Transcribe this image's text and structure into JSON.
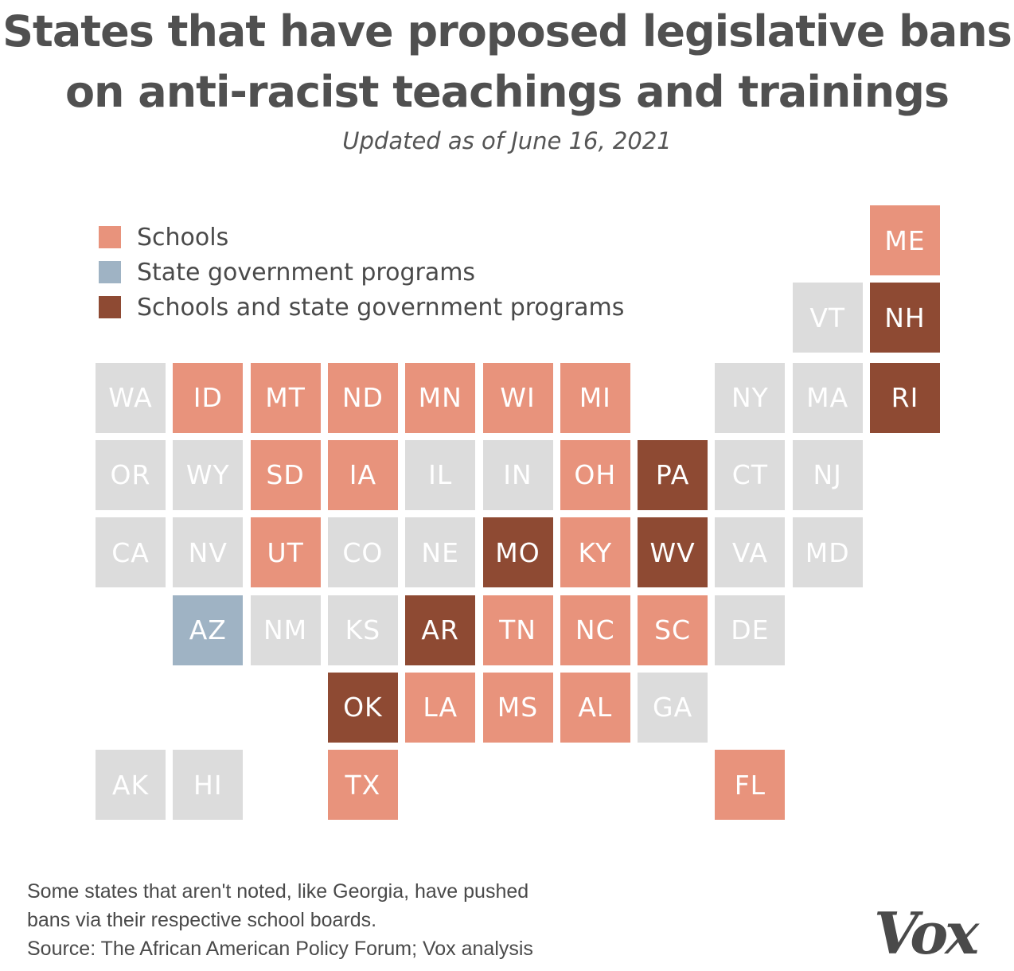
{
  "chart_data": {
    "type": "tile-map",
    "title_line1": "States that have proposed legislative bans",
    "title_line2": "on anti-racist teachings and trainings",
    "subtitle": "Updated as of June 16, 2021",
    "legend": [
      {
        "key": "schools",
        "label": "Schools",
        "color": "#e8937c"
      },
      {
        "key": "state",
        "label": "State government programs",
        "color": "#9fb3c4"
      },
      {
        "key": "both",
        "label": "Schools and state government programs",
        "color": "#8e4a33"
      }
    ],
    "none_color": "#dcdcdc",
    "states": [
      {
        "abbr": "ME",
        "row": 0,
        "col": 10,
        "cat": "schools"
      },
      {
        "abbr": "VT",
        "row": 1,
        "col": 9,
        "cat": "none"
      },
      {
        "abbr": "NH",
        "row": 1,
        "col": 10,
        "cat": "both"
      },
      {
        "abbr": "WA",
        "row": 2,
        "col": 0,
        "cat": "none"
      },
      {
        "abbr": "ID",
        "row": 2,
        "col": 1,
        "cat": "schools"
      },
      {
        "abbr": "MT",
        "row": 2,
        "col": 2,
        "cat": "schools"
      },
      {
        "abbr": "ND",
        "row": 2,
        "col": 3,
        "cat": "schools"
      },
      {
        "abbr": "MN",
        "row": 2,
        "col": 4,
        "cat": "schools"
      },
      {
        "abbr": "WI",
        "row": 2,
        "col": 5,
        "cat": "schools"
      },
      {
        "abbr": "MI",
        "row": 2,
        "col": 6,
        "cat": "schools"
      },
      {
        "abbr": "NY",
        "row": 2,
        "col": 8,
        "cat": "none"
      },
      {
        "abbr": "MA",
        "row": 2,
        "col": 9,
        "cat": "none"
      },
      {
        "abbr": "RI",
        "row": 2,
        "col": 10,
        "cat": "both"
      },
      {
        "abbr": "OR",
        "row": 3,
        "col": 0,
        "cat": "none"
      },
      {
        "abbr": "WY",
        "row": 3,
        "col": 1,
        "cat": "none"
      },
      {
        "abbr": "SD",
        "row": 3,
        "col": 2,
        "cat": "schools"
      },
      {
        "abbr": "IA",
        "row": 3,
        "col": 3,
        "cat": "schools"
      },
      {
        "abbr": "IL",
        "row": 3,
        "col": 4,
        "cat": "none"
      },
      {
        "abbr": "IN",
        "row": 3,
        "col": 5,
        "cat": "none"
      },
      {
        "abbr": "OH",
        "row": 3,
        "col": 6,
        "cat": "schools"
      },
      {
        "abbr": "PA",
        "row": 3,
        "col": 7,
        "cat": "both"
      },
      {
        "abbr": "CT",
        "row": 3,
        "col": 8,
        "cat": "none"
      },
      {
        "abbr": "NJ",
        "row": 3,
        "col": 9,
        "cat": "none"
      },
      {
        "abbr": "CA",
        "row": 4,
        "col": 0,
        "cat": "none"
      },
      {
        "abbr": "NV",
        "row": 4,
        "col": 1,
        "cat": "none"
      },
      {
        "abbr": "UT",
        "row": 4,
        "col": 2,
        "cat": "schools"
      },
      {
        "abbr": "CO",
        "row": 4,
        "col": 3,
        "cat": "none"
      },
      {
        "abbr": "NE",
        "row": 4,
        "col": 4,
        "cat": "none"
      },
      {
        "abbr": "MO",
        "row": 4,
        "col": 5,
        "cat": "both"
      },
      {
        "abbr": "KY",
        "row": 4,
        "col": 6,
        "cat": "schools"
      },
      {
        "abbr": "WV",
        "row": 4,
        "col": 7,
        "cat": "both"
      },
      {
        "abbr": "VA",
        "row": 4,
        "col": 8,
        "cat": "none"
      },
      {
        "abbr": "MD",
        "row": 4,
        "col": 9,
        "cat": "none"
      },
      {
        "abbr": "AZ",
        "row": 5,
        "col": 1,
        "cat": "state"
      },
      {
        "abbr": "NM",
        "row": 5,
        "col": 2,
        "cat": "none"
      },
      {
        "abbr": "KS",
        "row": 5,
        "col": 3,
        "cat": "none"
      },
      {
        "abbr": "AR",
        "row": 5,
        "col": 4,
        "cat": "both"
      },
      {
        "abbr": "TN",
        "row": 5,
        "col": 5,
        "cat": "schools"
      },
      {
        "abbr": "NC",
        "row": 5,
        "col": 6,
        "cat": "schools"
      },
      {
        "abbr": "SC",
        "row": 5,
        "col": 7,
        "cat": "schools"
      },
      {
        "abbr": "DE",
        "row": 5,
        "col": 8,
        "cat": "none"
      },
      {
        "abbr": "OK",
        "row": 6,
        "col": 3,
        "cat": "both"
      },
      {
        "abbr": "LA",
        "row": 6,
        "col": 4,
        "cat": "schools"
      },
      {
        "abbr": "MS",
        "row": 6,
        "col": 5,
        "cat": "schools"
      },
      {
        "abbr": "AL",
        "row": 6,
        "col": 6,
        "cat": "schools"
      },
      {
        "abbr": "GA",
        "row": 6,
        "col": 7,
        "cat": "none"
      },
      {
        "abbr": "AK",
        "row": 7,
        "col": 0,
        "cat": "none"
      },
      {
        "abbr": "HI",
        "row": 7,
        "col": 1,
        "cat": "none"
      },
      {
        "abbr": "TX",
        "row": 7,
        "col": 3,
        "cat": "schools"
      },
      {
        "abbr": "FL",
        "row": 7,
        "col": 8,
        "cat": "schools"
      }
    ],
    "notes": [
      "Some states that aren't noted, like Georgia, have pushed",
      "bans via their respective school boards.",
      "Source: The African American Policy Forum; Vox analysis"
    ],
    "logo": "Vox"
  }
}
